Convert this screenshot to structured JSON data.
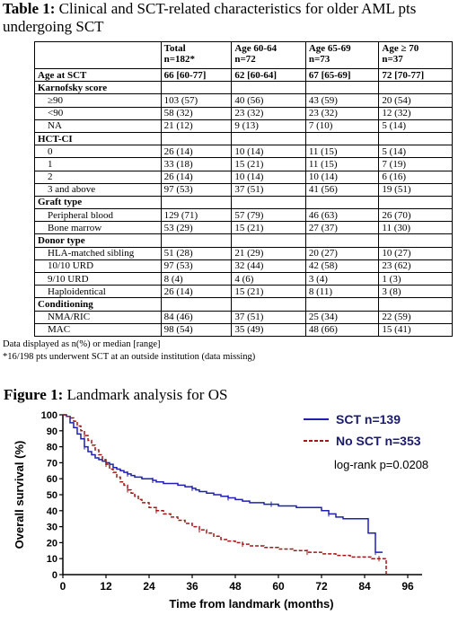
{
  "table": {
    "caption_label": "Table 1:",
    "caption_text": " Clinical and SCT-related characteristics for older AML pts undergoing SCT",
    "headers": [
      {
        "line1": "",
        "line2": ""
      },
      {
        "line1": "Total",
        "line2": "n=182*"
      },
      {
        "line1": "Age 60-64",
        "line2": "n=72"
      },
      {
        "line1": "Age 65-69",
        "line2": "n=73"
      },
      {
        "line1": "Age ≥ 70",
        "line2": "n=37"
      }
    ],
    "rows": [
      {
        "kind": "bold",
        "cells": [
          "Age at SCT",
          "66 [60-77]",
          "62 [60-64]",
          "67 [65-69]",
          "72 [70-77]"
        ]
      },
      {
        "kind": "group",
        "cells": [
          "Karnofsky score",
          "",
          "",
          "",
          ""
        ]
      },
      {
        "kind": "item",
        "cells": [
          "≥90",
          "103 (57)",
          "40 (56)",
          "43 (59)",
          "20 (54)"
        ]
      },
      {
        "kind": "item",
        "cells": [
          "<90",
          "58 (32)",
          "23 (32)",
          "23 (32)",
          "12 (32)"
        ]
      },
      {
        "kind": "item",
        "cells": [
          "NA",
          "21 (12)",
          "9 (13)",
          "7 (10)",
          "5 (14)"
        ]
      },
      {
        "kind": "group",
        "cells": [
          "HCT-CI",
          "",
          "",
          "",
          ""
        ]
      },
      {
        "kind": "item",
        "cells": [
          "0",
          "26 (14)",
          "10 (14)",
          "11 (15)",
          "5 (14)"
        ]
      },
      {
        "kind": "item",
        "cells": [
          "1",
          "33 (18)",
          "15 (21)",
          "11 (15)",
          "7 (19)"
        ]
      },
      {
        "kind": "item",
        "cells": [
          "2",
          "26 (14)",
          "10 (14)",
          "10 (14)",
          "6 (16)"
        ]
      },
      {
        "kind": "item",
        "cells": [
          "3 and above",
          "97 (53)",
          "37 (51)",
          "41 (56)",
          "19 (51)"
        ]
      },
      {
        "kind": "group",
        "cells": [
          "Graft type",
          "",
          "",
          "",
          ""
        ]
      },
      {
        "kind": "item",
        "cells": [
          "Peripheral blood",
          "129 (71)",
          "57 (79)",
          "46 (63)",
          "26 (70)"
        ]
      },
      {
        "kind": "item",
        "cells": [
          "Bone marrow",
          "53 (29)",
          "15 (21)",
          "27 (37)",
          "11 (30)"
        ]
      },
      {
        "kind": "group",
        "cells": [
          "Donor type",
          "",
          "",
          "",
          ""
        ]
      },
      {
        "kind": "item",
        "cells": [
          "HLA-matched sibling",
          "51 (28)",
          "21 (29)",
          "20 (27)",
          "10 (27)"
        ]
      },
      {
        "kind": "item",
        "cells": [
          "10/10 URD",
          "97 (53)",
          "32 (44)",
          "42 (58)",
          "23 (62)"
        ]
      },
      {
        "kind": "item",
        "cells": [
          "9/10 URD",
          "8 (4)",
          "4 (6)",
          "3 (4)",
          "1 (3)"
        ]
      },
      {
        "kind": "item",
        "cells": [
          "Haploidentical",
          "26 (14)",
          "15 (21)",
          "8 (11)",
          "3 (8)"
        ]
      },
      {
        "kind": "group",
        "cells": [
          "Conditioning",
          "",
          "",
          "",
          ""
        ]
      },
      {
        "kind": "item",
        "cells": [
          "NMA/RIC",
          "84 (46)",
          "37 (51)",
          "25 (34)",
          "22 (59)"
        ]
      },
      {
        "kind": "item",
        "cells": [
          "MAC",
          "98 (54)",
          "35 (49)",
          "48 (66)",
          "15 (41)"
        ]
      }
    ],
    "footnotes": [
      "Data displayed as n(%) or median [range]",
      "*16/198 pts underwent SCT at an outside institution (data missing)"
    ]
  },
  "figure": {
    "caption_label": "Figure 1:",
    "caption_text": " Landmark analysis for OS"
  },
  "chart_data": {
    "type": "line",
    "xlabel": "Time from landmark (months)",
    "ylabel": "Overall survival  (%)",
    "xlim": [
      0,
      100
    ],
    "ylim": [
      0,
      100
    ],
    "xticks": [
      0,
      12,
      24,
      36,
      48,
      60,
      72,
      84,
      96
    ],
    "yticks": [
      0,
      10,
      20,
      30,
      40,
      50,
      60,
      70,
      80,
      90,
      100
    ],
    "annotation": "log-rank p=0.0208",
    "grid": false,
    "legend_position": "top-right",
    "series": [
      {
        "name": "SCT n=139",
        "color": "#1f1fb4",
        "style": "solid",
        "points": [
          [
            0,
            100
          ],
          [
            1,
            99
          ],
          [
            2,
            95
          ],
          [
            3,
            92
          ],
          [
            4,
            88
          ],
          [
            5,
            85
          ],
          [
            6,
            80
          ],
          [
            7,
            77
          ],
          [
            8,
            75
          ],
          [
            9,
            73
          ],
          [
            10,
            72
          ],
          [
            11,
            71
          ],
          [
            12,
            70
          ],
          [
            13,
            69
          ],
          [
            14,
            67
          ],
          [
            15,
            66
          ],
          [
            16,
            65
          ],
          [
            17,
            64
          ],
          [
            18,
            63
          ],
          [
            19,
            62
          ],
          [
            20,
            61
          ],
          [
            21,
            61
          ],
          [
            22,
            60
          ],
          [
            24,
            60
          ],
          [
            25,
            59
          ],
          [
            26,
            58
          ],
          [
            28,
            57
          ],
          [
            30,
            57
          ],
          [
            32,
            56
          ],
          [
            34,
            55
          ],
          [
            36,
            54
          ],
          [
            37,
            53
          ],
          [
            38,
            52
          ],
          [
            40,
            51
          ],
          [
            42,
            50
          ],
          [
            44,
            49
          ],
          [
            46,
            48
          ],
          [
            48,
            47
          ],
          [
            50,
            46
          ],
          [
            52,
            45
          ],
          [
            54,
            45
          ],
          [
            56,
            44
          ],
          [
            58,
            44
          ],
          [
            60,
            43
          ],
          [
            64,
            43
          ],
          [
            65,
            42
          ],
          [
            70,
            42
          ],
          [
            72,
            40
          ],
          [
            74,
            38
          ],
          [
            76,
            36
          ],
          [
            78,
            35
          ],
          [
            84,
            35
          ],
          [
            85,
            26
          ],
          [
            86,
            26
          ],
          [
            87,
            14
          ],
          [
            89,
            14
          ]
        ]
      },
      {
        "name": "No SCT n=353",
        "color": "#a01818",
        "style": "dashed",
        "points": [
          [
            0,
            100
          ],
          [
            1,
            99
          ],
          [
            2,
            98
          ],
          [
            3,
            96
          ],
          [
            4,
            93
          ],
          [
            5,
            90
          ],
          [
            6,
            87
          ],
          [
            7,
            84
          ],
          [
            8,
            81
          ],
          [
            9,
            78
          ],
          [
            10,
            75
          ],
          [
            11,
            72
          ],
          [
            12,
            69
          ],
          [
            13,
            66
          ],
          [
            14,
            64
          ],
          [
            15,
            61
          ],
          [
            16,
            58
          ],
          [
            17,
            56
          ],
          [
            18,
            53
          ],
          [
            19,
            51
          ],
          [
            20,
            49
          ],
          [
            21,
            47
          ],
          [
            22,
            45
          ],
          [
            24,
            42
          ],
          [
            26,
            40
          ],
          [
            28,
            38
          ],
          [
            30,
            36
          ],
          [
            32,
            34
          ],
          [
            34,
            32
          ],
          [
            36,
            30
          ],
          [
            38,
            28
          ],
          [
            40,
            26
          ],
          [
            42,
            24
          ],
          [
            44,
            22
          ],
          [
            46,
            21
          ],
          [
            48,
            20
          ],
          [
            50,
            19
          ],
          [
            52,
            18
          ],
          [
            54,
            18
          ],
          [
            56,
            17
          ],
          [
            60,
            16
          ],
          [
            64,
            15
          ],
          [
            68,
            14
          ],
          [
            72,
            13
          ],
          [
            76,
            12
          ],
          [
            80,
            11
          ],
          [
            84,
            11
          ],
          [
            86,
            10
          ],
          [
            88,
            10
          ],
          [
            90,
            0
          ]
        ]
      }
    ]
  }
}
